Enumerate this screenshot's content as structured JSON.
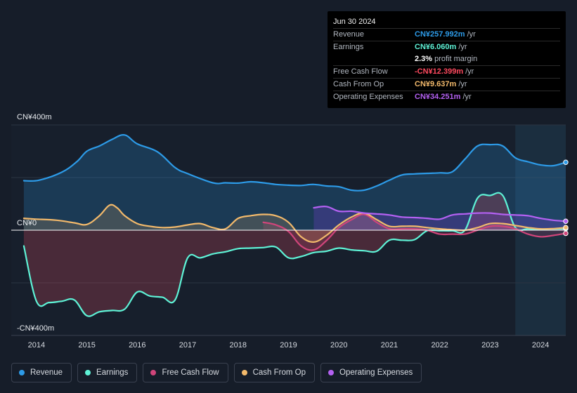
{
  "tooltip": {
    "date": "Jun 30 2024",
    "rows": [
      {
        "label": "Revenue",
        "value": "CN¥257.992m",
        "unit": "/yr",
        "color": "#2d9be8"
      },
      {
        "label": "Earnings",
        "value": "CN¥6.060m",
        "unit": "/yr",
        "color": "#5ef2d6"
      },
      {
        "label": "",
        "value": "2.3%",
        "unit": "profit margin",
        "color": "#ffffff"
      },
      {
        "label": "Free Cash Flow",
        "value": "-CN¥12.399m",
        "unit": "/yr",
        "color": "#ff4a5f"
      },
      {
        "label": "Cash From Op",
        "value": "CN¥9.637m",
        "unit": "/yr",
        "color": "#f2b96b"
      },
      {
        "label": "Operating Expenses",
        "value": "CN¥34.251m",
        "unit": "/yr",
        "color": "#b461f2"
      }
    ]
  },
  "legend": [
    {
      "label": "Revenue",
      "color": "#2d9be8"
    },
    {
      "label": "Earnings",
      "color": "#5ef2d6"
    },
    {
      "label": "Free Cash Flow",
      "color": "#d0457a"
    },
    {
      "label": "Cash From Op",
      "color": "#f2b96b"
    },
    {
      "label": "Operating Expenses",
      "color": "#b461f2"
    }
  ],
  "chart_data": {
    "type": "area",
    "title": "",
    "xlabel": "",
    "ylabel": "",
    "y_tick_labels": [
      {
        "value": 400,
        "label": "CN¥400m"
      },
      {
        "value": 0,
        "label": "CN¥0"
      },
      {
        "value": -400,
        "label": "-CN¥400m"
      }
    ],
    "ylim": [
      -400,
      400
    ],
    "xlim": [
      2013.5,
      2024.5
    ],
    "x_ticks": [
      2014,
      2015,
      2016,
      2017,
      2018,
      2019,
      2020,
      2021,
      2022,
      2023,
      2024
    ],
    "forecast_shade_from": 2023.5,
    "series": [
      {
        "name": "Revenue",
        "color": "#2d9be8",
        "unit": "CN¥m",
        "x": [
          2013.75,
          2014.05,
          2014.5,
          2014.8,
          2015.0,
          2015.25,
          2015.5,
          2015.75,
          2016.0,
          2016.4,
          2016.75,
          2017.0,
          2017.5,
          2017.75,
          2018.0,
          2018.25,
          2018.5,
          2018.75,
          2019.0,
          2019.25,
          2019.5,
          2019.75,
          2020.0,
          2020.25,
          2020.5,
          2020.75,
          2021.0,
          2021.25,
          2021.5,
          2021.75,
          2022.0,
          2022.25,
          2022.5,
          2022.75,
          2023.0,
          2023.25,
          2023.5,
          2023.75,
          2024.0,
          2024.25,
          2024.5
        ],
        "values": [
          188,
          190,
          220,
          260,
          300,
          320,
          345,
          362,
          328,
          298,
          238,
          215,
          180,
          180,
          179,
          184,
          180,
          174,
          171,
          170,
          174,
          168,
          165,
          152,
          152,
          168,
          190,
          210,
          214,
          216,
          218,
          222,
          270,
          320,
          325,
          320,
          275,
          260,
          248,
          245,
          258
        ]
      },
      {
        "name": "Earnings",
        "color": "#5ef2d6",
        "unit": "CN¥m",
        "x": [
          2013.75,
          2014.0,
          2014.25,
          2014.5,
          2014.75,
          2015.0,
          2015.25,
          2015.5,
          2015.75,
          2016.0,
          2016.25,
          2016.5,
          2016.75,
          2017.0,
          2017.25,
          2017.5,
          2017.75,
          2018.0,
          2018.25,
          2018.5,
          2018.75,
          2019.0,
          2019.25,
          2019.5,
          2019.75,
          2020.0,
          2020.25,
          2020.5,
          2020.75,
          2021.0,
          2021.25,
          2021.5,
          2021.75,
          2022.0,
          2022.25,
          2022.5,
          2022.75,
          2023.0,
          2023.25,
          2023.5,
          2023.75,
          2024.0,
          2024.25,
          2024.5
        ],
        "values": [
          -60,
          -270,
          -275,
          -270,
          -265,
          -325,
          -310,
          -305,
          -300,
          -235,
          -250,
          -255,
          -265,
          -105,
          -105,
          -90,
          -82,
          -70,
          -68,
          -66,
          -64,
          -105,
          -100,
          -85,
          -80,
          -68,
          -75,
          -78,
          -80,
          -38,
          -38,
          -36,
          -2,
          -2,
          -2,
          0,
          122,
          132,
          132,
          10,
          5,
          4,
          5,
          6
        ]
      },
      {
        "name": "Free Cash Flow",
        "color": "#d0457a",
        "unit": "CN¥m",
        "x": [
          2018.5,
          2018.75,
          2019.0,
          2019.25,
          2019.5,
          2019.75,
          2020.0,
          2020.25,
          2020.5,
          2020.75,
          2021.0,
          2021.25,
          2021.5,
          2021.75,
          2022.0,
          2022.25,
          2022.5,
          2022.75,
          2023.0,
          2023.25,
          2023.5,
          2023.75,
          2024.0,
          2024.25,
          2024.5
        ],
        "values": [
          30,
          20,
          -5,
          -60,
          -75,
          -40,
          10,
          40,
          60,
          30,
          5,
          5,
          5,
          0,
          -15,
          -15,
          -15,
          0,
          15,
          15,
          5,
          -15,
          -25,
          -20,
          -12
        ]
      },
      {
        "name": "Cash From Op",
        "color": "#f2b96b",
        "unit": "CN¥m",
        "x": [
          2013.75,
          2014.0,
          2014.4,
          2014.75,
          2015.0,
          2015.25,
          2015.45,
          2015.6,
          2015.75,
          2016.0,
          2016.25,
          2016.5,
          2016.75,
          2017.0,
          2017.25,
          2017.5,
          2017.75,
          2018.0,
          2018.25,
          2018.5,
          2018.75,
          2019.0,
          2019.25,
          2019.5,
          2019.75,
          2020.0,
          2020.25,
          2020.5,
          2020.75,
          2021.0,
          2021.25,
          2021.5,
          2021.75,
          2022.0,
          2022.25,
          2022.5,
          2022.75,
          2023.0,
          2023.25,
          2023.5,
          2023.75,
          2024.0,
          2024.25,
          2024.5
        ],
        "values": [
          45,
          42,
          38,
          28,
          22,
          55,
          95,
          85,
          55,
          25,
          15,
          10,
          12,
          20,
          25,
          10,
          5,
          45,
          55,
          60,
          55,
          30,
          -25,
          -45,
          -20,
          20,
          50,
          65,
          40,
          15,
          15,
          15,
          10,
          5,
          2,
          0,
          10,
          25,
          25,
          18,
          10,
          5,
          6,
          10
        ]
      },
      {
        "name": "Operating Expenses",
        "color": "#b461f2",
        "unit": "CN¥m",
        "x": [
          2019.5,
          2019.75,
          2020.0,
          2020.25,
          2020.5,
          2020.75,
          2021.0,
          2021.25,
          2021.5,
          2021.75,
          2022.0,
          2022.25,
          2022.5,
          2022.75,
          2023.0,
          2023.25,
          2023.5,
          2023.75,
          2024.0,
          2024.25,
          2024.5
        ],
        "values": [
          85,
          90,
          72,
          72,
          65,
          62,
          58,
          50,
          48,
          45,
          42,
          58,
          62,
          65,
          65,
          60,
          58,
          55,
          45,
          38,
          34
        ]
      }
    ]
  }
}
